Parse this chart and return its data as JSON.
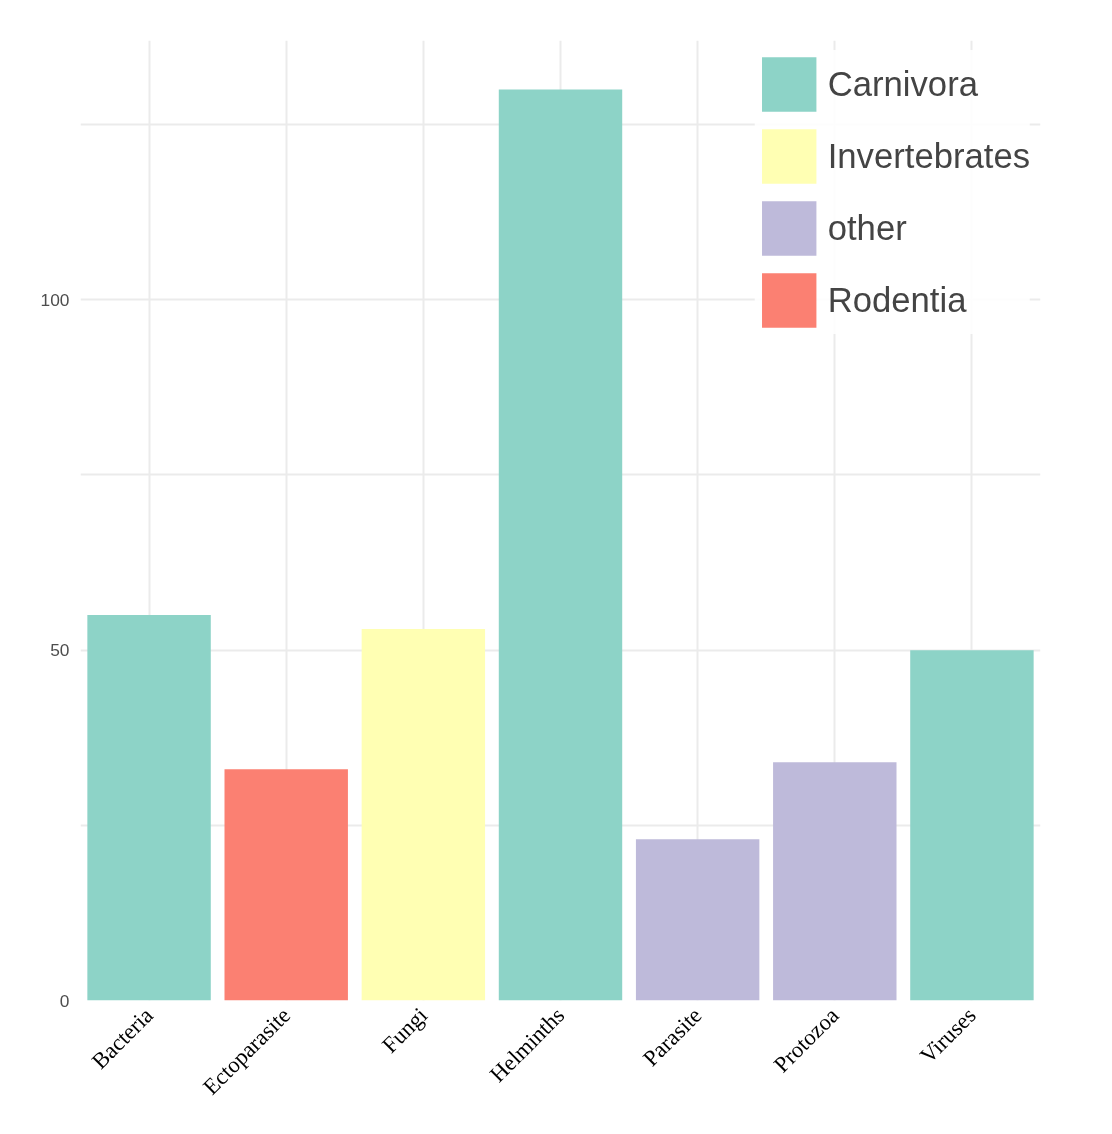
{
  "chart_data": {
    "type": "bar",
    "categories": [
      "Bacteria",
      "Ectoparasite",
      "Fungi",
      "Helminths",
      "Parasite",
      "Protozoa",
      "Viruses"
    ],
    "series": [
      {
        "name": "Carnivora",
        "color": "#8dd3c7",
        "values": [
          55,
          null,
          null,
          130,
          null,
          null,
          50
        ]
      },
      {
        "name": "Invertebrates",
        "color": "#ffffb3",
        "values": [
          null,
          null,
          53,
          null,
          null,
          null,
          null
        ]
      },
      {
        "name": "other",
        "color": "#bebada",
        "values": [
          null,
          null,
          null,
          null,
          23,
          34,
          null
        ]
      },
      {
        "name": "Rodentia",
        "color": "#fb8072",
        "values": [
          null,
          33,
          null,
          null,
          null,
          null,
          null
        ]
      }
    ],
    "ylim": [
      0,
      137
    ],
    "yticks": [
      0,
      {
        "value": 25,
        "label": null
      },
      50,
      {
        "value": 75,
        "label": null
      },
      100,
      {
        "value": 125,
        "label": null
      }
    ],
    "grid": true,
    "legend": "top right"
  }
}
